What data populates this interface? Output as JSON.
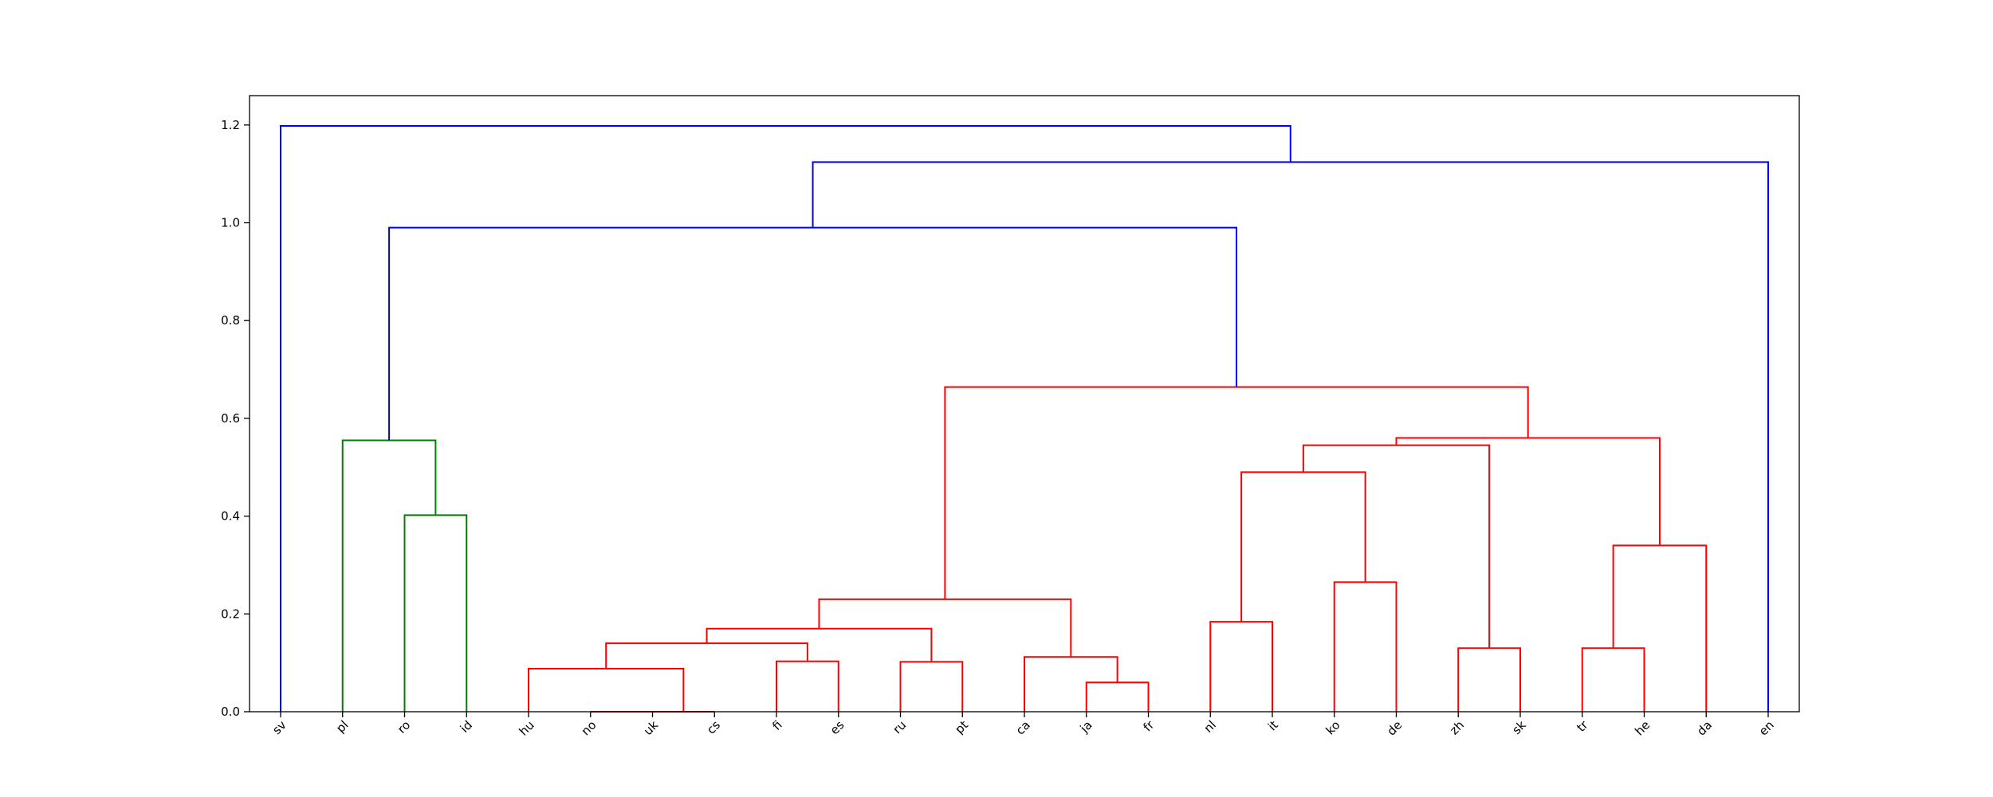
{
  "chart_data": {
    "type": "dendrogram",
    "leaves": [
      "sv",
      "pl",
      "ro",
      "id",
      "hu",
      "no",
      "uk",
      "cs",
      "fi",
      "es",
      "ru",
      "pt",
      "ca",
      "ja",
      "fr",
      "nl",
      "it",
      "ko",
      "de",
      "zh",
      "sk",
      "tr",
      "he",
      "da",
      "en"
    ],
    "ylim": [
      0,
      1.26
    ],
    "y_ticks": [
      "0.0",
      "0.2",
      "0.4",
      "0.6",
      "0.8",
      "1.0",
      "1.2"
    ],
    "y_tick_values": [
      0.0,
      0.2,
      0.4,
      0.6,
      0.8,
      1.0,
      1.2
    ],
    "grid": false,
    "colors": {
      "cluster_1": "#008000",
      "cluster_2": "#ff0000",
      "above_threshold": "#0000ff"
    },
    "links": [
      {
        "left": 5,
        "right": 6,
        "height": 0.0,
        "color": "cluster_2"
      },
      {
        "left": 6,
        "right": 7,
        "height": 0.0,
        "color": "cluster_2"
      },
      {
        "left": 13,
        "right": 14,
        "height": 0.06,
        "color": "cluster_2"
      },
      {
        "left": 10,
        "right": 11,
        "height": 0.102,
        "color": "cluster_2"
      },
      {
        "left": 8,
        "right": 9,
        "height": 0.103,
        "color": "cluster_2"
      },
      {
        "left": 12,
        "right": 13.5,
        "height": 0.112,
        "color": "cluster_2"
      },
      {
        "left": 19,
        "right": 20,
        "height": 0.13,
        "color": "cluster_2"
      },
      {
        "left": 21,
        "right": 22,
        "height": 0.13,
        "color": "cluster_2"
      },
      {
        "left": 4,
        "right": 6.5,
        "height": 0.088,
        "color": "cluster_2"
      },
      {
        "left": 5.25,
        "right": 8.5,
        "height": 0.14,
        "color": "cluster_2"
      },
      {
        "left": 6.875,
        "right": 10.5,
        "height": 0.17,
        "color": "cluster_2"
      },
      {
        "left": 15,
        "right": 16,
        "height": 0.184,
        "color": "cluster_2"
      },
      {
        "left": 8.6875,
        "right": 12.75,
        "height": 0.23,
        "color": "cluster_2"
      },
      {
        "left": 17,
        "right": 18,
        "height": 0.265,
        "color": "cluster_2"
      },
      {
        "left": 21.5,
        "right": 23,
        "height": 0.34,
        "color": "cluster_2"
      },
      {
        "left": 2,
        "right": 3,
        "height": 0.402,
        "color": "cluster_1"
      },
      {
        "left": 15.5,
        "right": 17.5,
        "height": 0.49,
        "color": "cluster_2"
      },
      {
        "left": 16.5,
        "right": 19.5,
        "height": 0.545,
        "color": "cluster_2"
      },
      {
        "left": 1,
        "right": 2.5,
        "height": 0.555,
        "color": "cluster_1"
      },
      {
        "left": 18,
        "right": 22.25,
        "height": 0.56,
        "color": "cluster_2"
      },
      {
        "left": 10.71875,
        "right": 20.125,
        "height": 0.664,
        "color": "cluster_2"
      },
      {
        "left": 1.75,
        "right": 15.421875,
        "height": 0.99,
        "color": "above_threshold"
      },
      {
        "left": 8.5859375,
        "right": 24,
        "height": 1.124,
        "color": "above_threshold"
      },
      {
        "left": 0,
        "right": 16.29296875,
        "height": 1.198,
        "color": "above_threshold"
      }
    ]
  }
}
